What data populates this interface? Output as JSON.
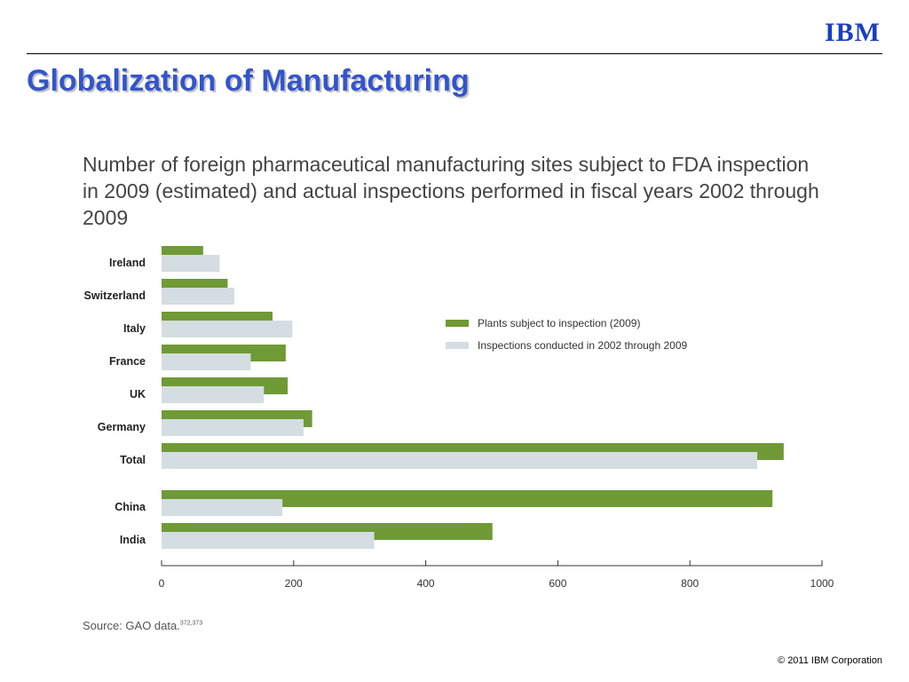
{
  "header": {
    "logo_text": "IBM",
    "title": "Globalization of Manufacturing"
  },
  "chart_data": {
    "type": "bar",
    "orientation": "horizontal",
    "title": "Number of foreign pharmaceutical manufacturing sites subject to FDA inspection in 2009 (estimated) and actual inspections performed in fiscal years 2002 through 2009",
    "categories": [
      "Ireland",
      "Switzerland",
      "Italy",
      "France",
      "UK",
      "Germany",
      "Total",
      "China",
      "India"
    ],
    "series": [
      {
        "name": "Plants subject to inspection (2009)",
        "color": "#6f9a35",
        "values": [
          63,
          100,
          168,
          188,
          191,
          228,
          942,
          925,
          501
        ]
      },
      {
        "name": "Inspections conducted in 2002 through 2009",
        "color": "#d4dde1",
        "values": [
          88,
          110,
          198,
          135,
          155,
          215,
          902,
          183,
          322
        ]
      }
    ],
    "xlim": [
      0,
      1000
    ],
    "xticks": [
      0,
      200,
      400,
      600,
      800,
      1000
    ],
    "legend_position": "right",
    "grid": false,
    "source": "Source: GAO data.",
    "source_refs": "372,373"
  },
  "footer": {
    "copyright": "© 2011 IBM Corporation"
  }
}
